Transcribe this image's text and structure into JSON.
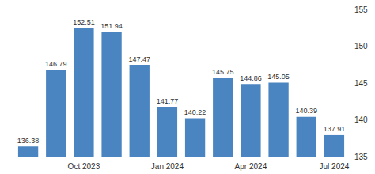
{
  "chart_data": {
    "type": "bar",
    "categories": [
      null,
      null,
      "Oct 2023",
      null,
      null,
      "Jan 2024",
      null,
      null,
      "Apr 2024",
      null,
      null,
      "Jul 2024"
    ],
    "values": [
      136.38,
      146.79,
      152.51,
      151.94,
      147.47,
      141.77,
      140.22,
      145.75,
      144.86,
      145.05,
      140.39,
      137.91
    ],
    "color": "#4a85c2",
    "ylim": [
      135,
      155
    ],
    "yticks": [
      135,
      140,
      145,
      150,
      155
    ],
    "grid": false,
    "data_labels": true
  }
}
